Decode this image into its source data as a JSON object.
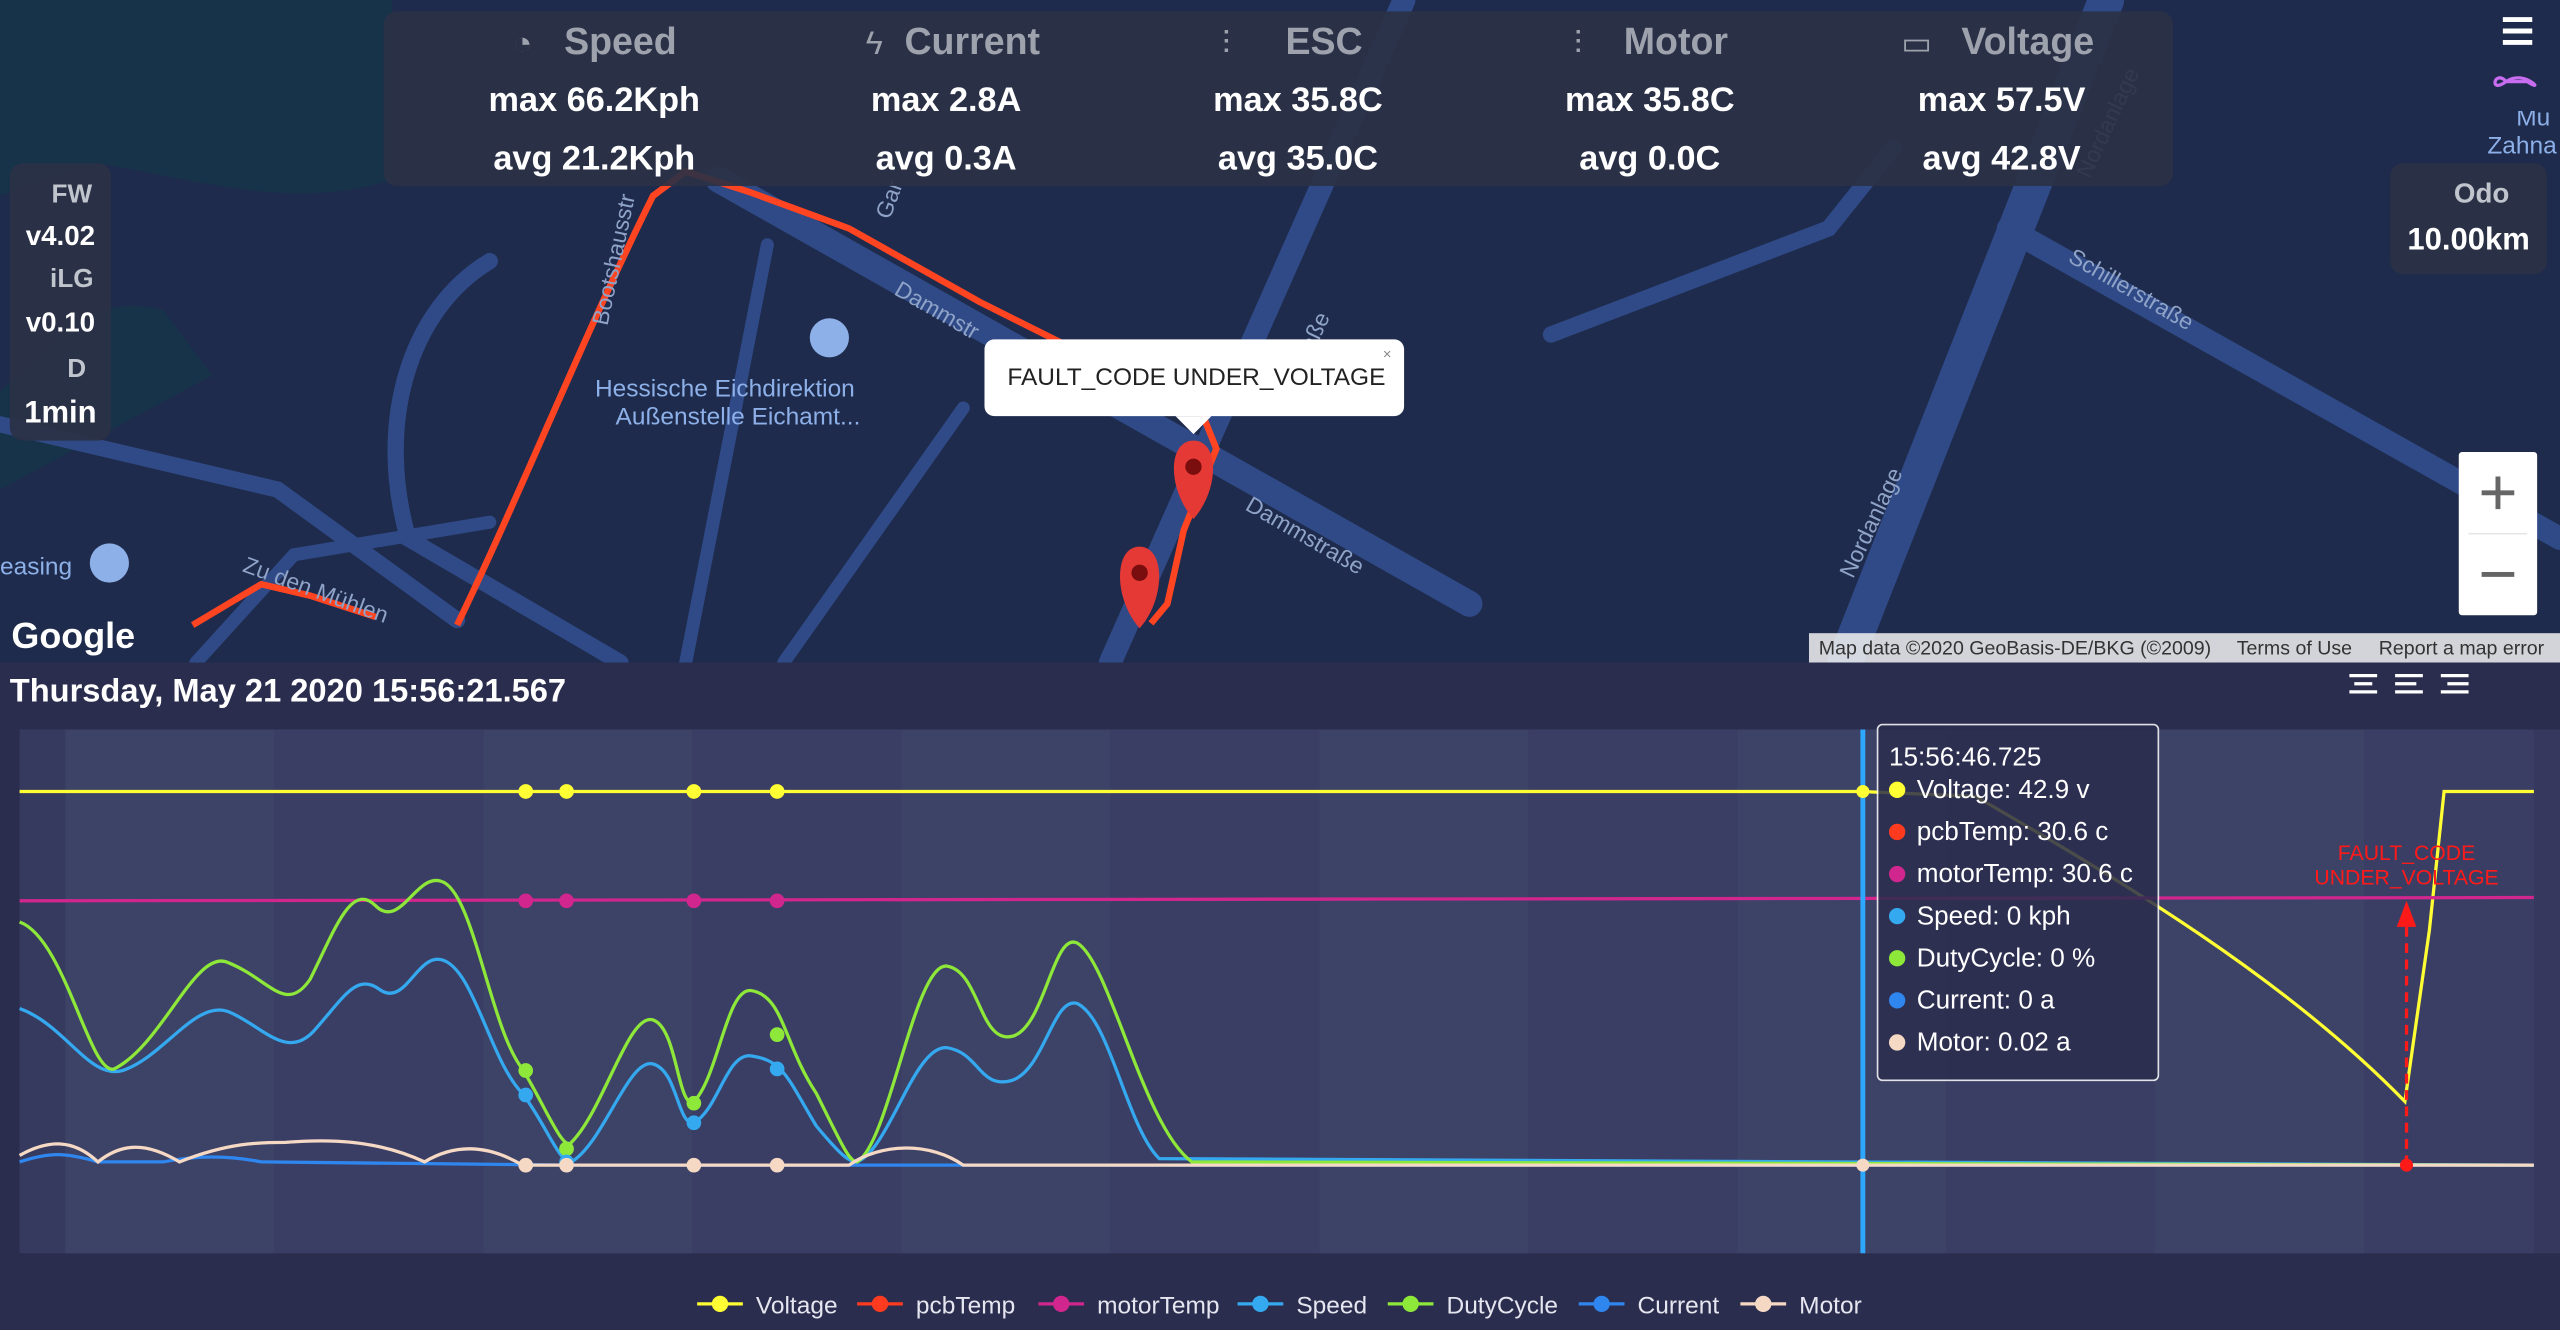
{
  "stats": [
    {
      "label": "Speed",
      "max": "max 66.2Kph",
      "avg": "avg 21.2Kph"
    },
    {
      "label": "Current",
      "max": "max 2.8A",
      "avg": "avg 0.3A"
    },
    {
      "label": "ESC",
      "max": "max 35.8C",
      "avg": "avg 35.0C"
    },
    {
      "label": "Motor",
      "max": "max 35.8C",
      "avg": "avg 0.0C"
    },
    {
      "label": "Voltage",
      "max": "max 57.5V",
      "avg": "avg 42.8V"
    }
  ],
  "info": {
    "fw_label": "FW",
    "fw": "v4.02",
    "ilg_label": "iLG",
    "ilg": "v0.10",
    "d_label": "D",
    "d": "1min"
  },
  "odo": {
    "label": "Odo",
    "value": "10.00km"
  },
  "map": {
    "streets": [
      "Bootshausstr",
      "Dammstr",
      "Dammstraße",
      "Schillerstraße",
      "Nordanlage",
      "Nordanlage",
      "Gar",
      "straße",
      "Zu den Mühlen"
    ],
    "poi": [
      "Hessische Eichdirektion",
      "Außenstelle Eichamt...",
      "easing"
    ],
    "corner": [
      "Mu",
      "Zahna"
    ],
    "google": "Google",
    "attribution": "Map data ©2020 GeoBasis-DE/BKG (©2009)",
    "terms": "Terms of Use",
    "report": "Report a map error",
    "popup": "FAULT_CODE UNDER_VOLTAGE"
  },
  "chart": {
    "timestamp": "Thursday, May 21 2020 15:56:21.567",
    "tooltip": {
      "time": "15:56:46.725",
      "items": [
        {
          "text": "Voltage: 42.9 v",
          "color": "#ffff33"
        },
        {
          "text": "pcbTemp: 30.6 c",
          "color": "#ff3b1f"
        },
        {
          "text": "motorTemp: 30.6 c",
          "color": "#d0268e"
        },
        {
          "text": "Speed: 0 kph",
          "color": "#35a9f0"
        },
        {
          "text": "DutyCycle: 0 %",
          "color": "#8ee83a"
        },
        {
          "text": "Current: 0 a",
          "color": "#2f86ee"
        },
        {
          "text": "Motor: 0.02 a",
          "color": "#f6d9c4"
        }
      ]
    },
    "annotation": [
      "FAULT_CODE",
      "UNDER_VOLTAGE"
    ],
    "legend": [
      {
        "name": "Voltage",
        "color": "#ffff33"
      },
      {
        "name": "pcbTemp",
        "color": "#ff3b1f"
      },
      {
        "name": "motorTemp",
        "color": "#d0268e"
      },
      {
        "name": "Speed",
        "color": "#35a9f0"
      },
      {
        "name": "DutyCycle",
        "color": "#8ee83a"
      },
      {
        "name": "Current",
        "color": "#2f86ee"
      },
      {
        "name": "Motor",
        "color": "#f6d9c4"
      }
    ]
  }
}
